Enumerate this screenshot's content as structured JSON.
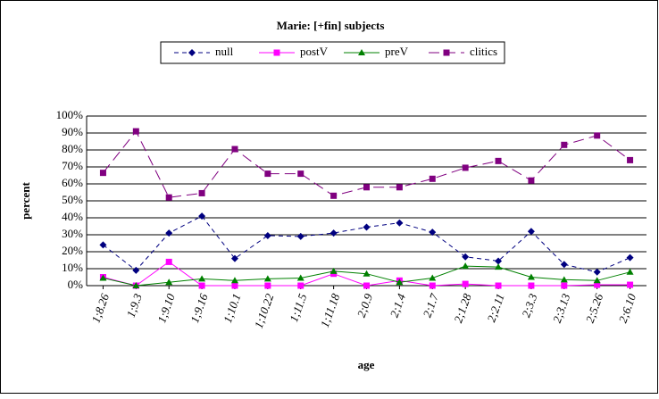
{
  "chart_data": {
    "type": "line",
    "title": "Marie: [+fin] subjects",
    "x_label": "age",
    "y_label": "percent",
    "categories": [
      "1;8.26",
      "1;9.3",
      "1;9.10",
      "1;9.16",
      "1;10.1",
      "1;10.22",
      "1;11.5",
      "1;11.18",
      "2;0.9",
      "2;1.4",
      "2;1.7",
      "2;1.28",
      "2;2.11",
      "2;3.3",
      "2;3.13",
      "2;5.26",
      "2;6.10"
    ],
    "series": [
      {
        "name": "null",
        "color": "#000080",
        "line_style": "dashed",
        "marker": "diamond",
        "values": [
          24,
          9,
          31,
          41,
          16,
          29.5,
          29,
          31,
          34.5,
          37,
          31.5,
          17,
          14.5,
          32,
          12.5,
          8,
          16.5
        ]
      },
      {
        "name": "postV",
        "color": "#ff00ff",
        "line_style": "solid",
        "marker": "square",
        "values": [
          5,
          0,
          14,
          0,
          0,
          0,
          0,
          7,
          0,
          3,
          0,
          1,
          0,
          0,
          0,
          0.5,
          0.5
        ]
      },
      {
        "name": "preV",
        "color": "#008000",
        "line_style": "solid",
        "marker": "triangle",
        "values": [
          4.5,
          0,
          2,
          4,
          3,
          4,
          4.5,
          8.5,
          7,
          2,
          4.5,
          11.5,
          11,
          5,
          3.5,
          3,
          8
        ]
      },
      {
        "name": "clitics",
        "color": "#800080",
        "line_style": "longdash",
        "marker": "square",
        "values": [
          66.5,
          91,
          52,
          54.5,
          80.5,
          66,
          66,
          53,
          58,
          58,
          63,
          69.5,
          73.5,
          62,
          83,
          88.5,
          74
        ]
      }
    ],
    "ylim": [
      0,
      100
    ],
    "yticks": [
      {
        "value": 0,
        "label": "0%"
      },
      {
        "value": 10,
        "label": "10%"
      },
      {
        "value": 20,
        "label": "20%"
      },
      {
        "value": 30,
        "label": "30%"
      },
      {
        "value": 40,
        "label": "40%"
      },
      {
        "value": 50,
        "label": "50%"
      },
      {
        "value": 60,
        "label": "60%"
      },
      {
        "value": 70,
        "label": "70%"
      },
      {
        "value": 80,
        "label": "80%"
      },
      {
        "value": 90,
        "label": "90%"
      },
      {
        "value": 100,
        "label": "100%"
      }
    ],
    "grid": true,
    "legend": "top"
  }
}
